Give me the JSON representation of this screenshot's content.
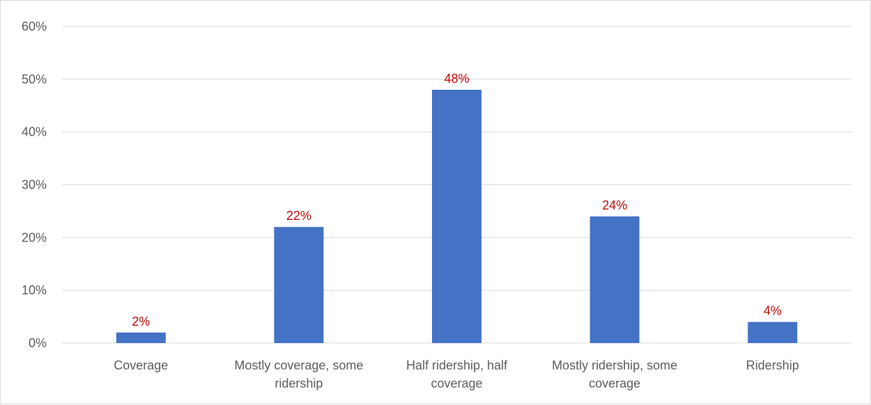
{
  "chart_data": {
    "type": "bar",
    "title": "",
    "xlabel": "",
    "ylabel": "",
    "categories": [
      [
        "Coverage"
      ],
      [
        "Mostly coverage, some",
        "ridership"
      ],
      [
        "Half ridership, half",
        "coverage"
      ],
      [
        "Mostly ridership, some",
        "coverage"
      ],
      [
        "Ridership"
      ]
    ],
    "values": [
      2,
      22,
      48,
      24,
      4
    ],
    "data_labels": [
      "2%",
      "22%",
      "48%",
      "24%",
      "4%"
    ],
    "ylim": [
      0,
      60
    ],
    "y_ticks": [
      0,
      10,
      20,
      30,
      40,
      50,
      60
    ],
    "y_tick_labels": [
      "0%",
      "10%",
      "20%",
      "30%",
      "40%",
      "50%",
      "60%"
    ],
    "grid": true,
    "legend": "none",
    "colors": {
      "bar": "#4472c4",
      "data_label": "#c00000",
      "grid": "#d9d9d9",
      "axis_text": "#595959"
    }
  }
}
